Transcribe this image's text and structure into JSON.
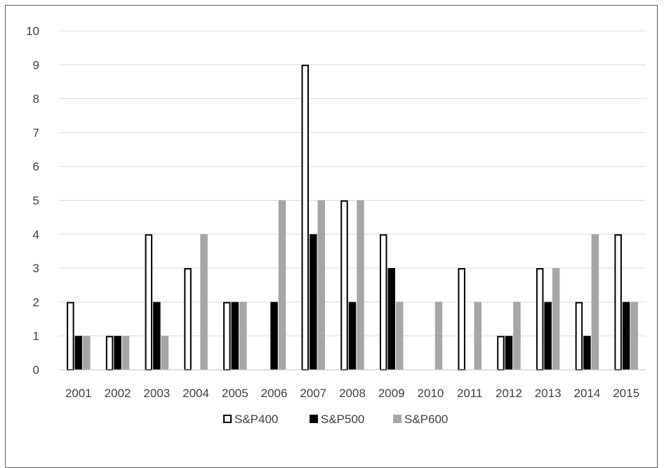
{
  "chart_data": {
    "type": "bar",
    "title": "",
    "xlabel": "",
    "ylabel": "",
    "categories": [
      "2001",
      "2002",
      "2003",
      "2004",
      "2005",
      "2006",
      "2007",
      "2008",
      "2009",
      "2010",
      "2011",
      "2012",
      "2013",
      "2014",
      "2015"
    ],
    "series": [
      {
        "name": "S&P400",
        "values": [
          2,
          1,
          4,
          3,
          2,
          0,
          9,
          5,
          4,
          0,
          3,
          1,
          3,
          2,
          4
        ],
        "color": "#ffffff",
        "stroke": "#000000"
      },
      {
        "name": "S&P500",
        "values": [
          1,
          1,
          2,
          0,
          2,
          2,
          4,
          2,
          3,
          0,
          0,
          1,
          2,
          1,
          2
        ],
        "color": "#000000",
        "stroke": "#000000"
      },
      {
        "name": "S&P600",
        "values": [
          1,
          1,
          1,
          4,
          2,
          5,
          5,
          5,
          2,
          2,
          2,
          2,
          3,
          4,
          2
        ],
        "color": "#a6a6a6",
        "stroke": "#a6a6a6"
      }
    ],
    "ylim": [
      0,
      10
    ],
    "yticks": [
      "0",
      "1",
      "2",
      "3",
      "4",
      "5",
      "6",
      "7",
      "8",
      "9",
      "10"
    ],
    "grid": true,
    "gridColor": "#d9d9d9",
    "legendPlacement": "bottom"
  }
}
